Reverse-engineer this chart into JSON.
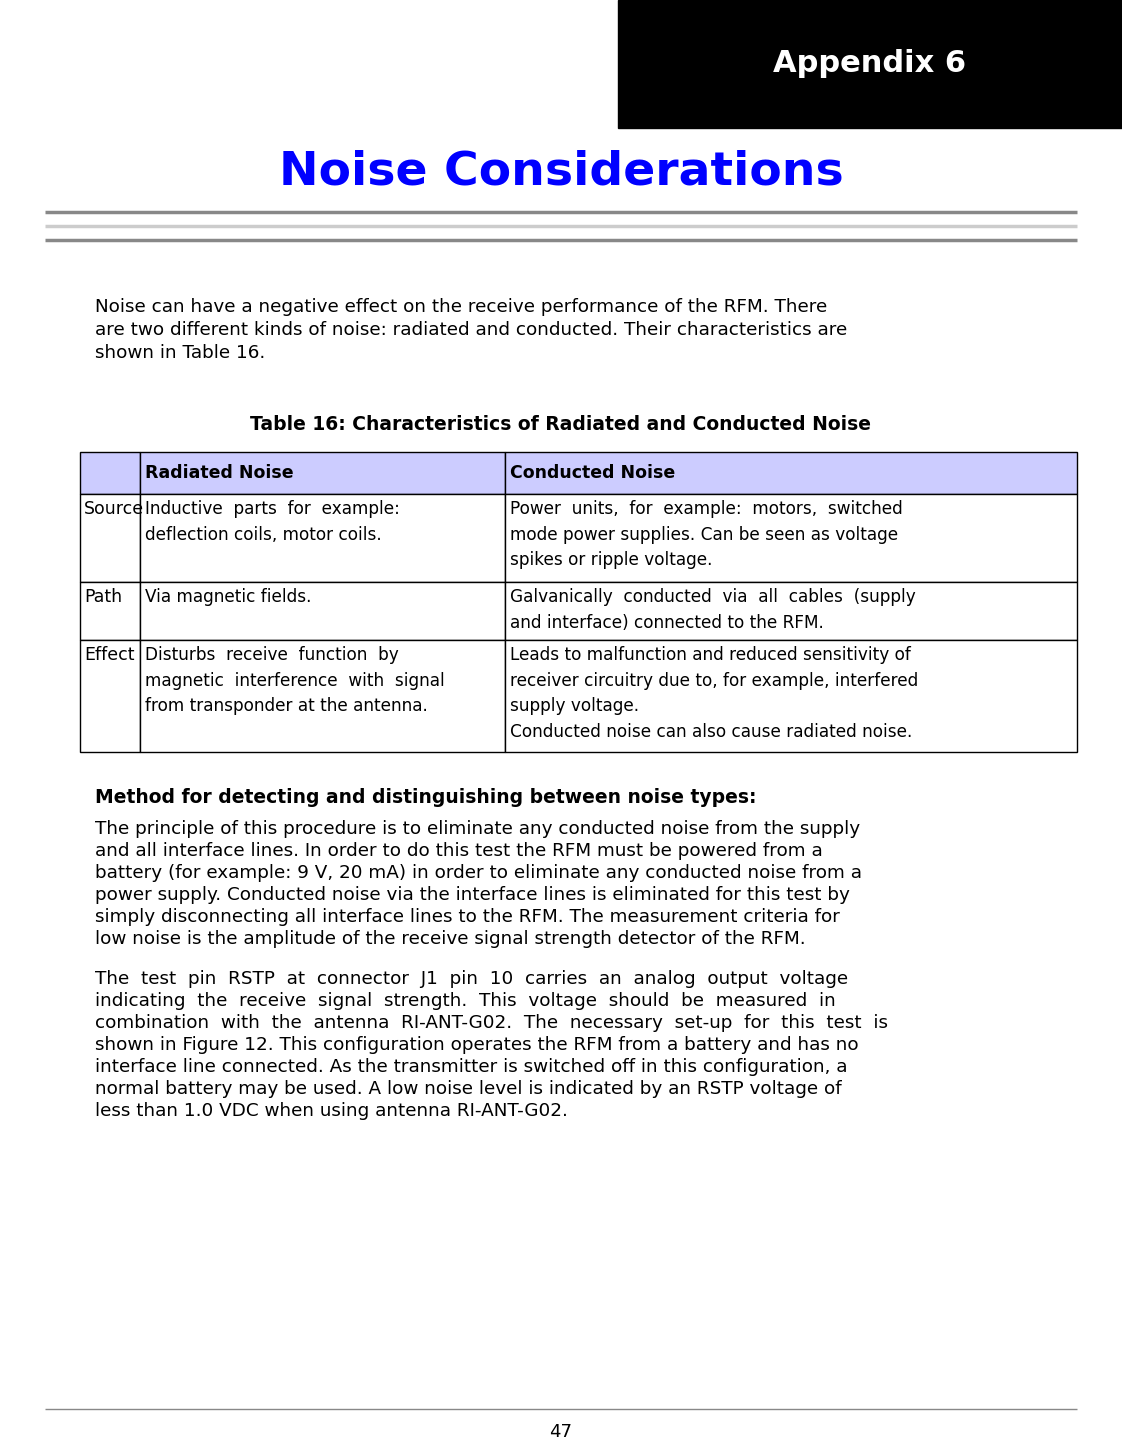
{
  "page_width": 11.22,
  "page_height": 14.41,
  "dpi": 100,
  "bg_color": "#ffffff",
  "header_bg": "#000000",
  "header_text": "Appendix 6",
  "header_text_color": "#ffffff",
  "title_text": "Noise Considerations",
  "title_color": "#0000ff",
  "table_header_bg": "#ccccff",
  "table_border_color": "#000000",
  "table_caption": "Table 16: Characteristics of Radiated and Conducted Noise",
  "table_col_headers": [
    "Radiated Noise",
    "Conducted Noise"
  ],
  "table_rows": [
    {
      "label": "Source",
      "col1": "Inductive  parts  for  example:\ndeflection coils, motor coils.",
      "col2": "Power  units,  for  example:  motors,  switched\nmode power supplies. Can be seen as voltage\nspikes or ripple voltage."
    },
    {
      "label": "Path",
      "col1": "Via magnetic fields.",
      "col2": "Galvanically  conducted  via  all  cables  (supply\nand interface) connected to the RFM."
    },
    {
      "label": "Effect",
      "col1": "Disturbs  receive  function  by\nmagnetic  interference  with  signal\nfrom transponder at the antenna.",
      "col2": "Leads to malfunction and reduced sensitivity of\nreceiver circuitry due to, for example, interfered\nsupply voltage.\nConducted noise can also cause radiated noise."
    }
  ],
  "intro_lines": [
    "Noise can have a negative effect on the receive performance of the RFM. There",
    "are two different kinds of noise: radiated and conducted. Their characteristics are",
    "shown in Table 16."
  ],
  "method_heading": "Method for detecting and distinguishing between noise types:",
  "para1_lines": [
    "The principle of this procedure is to eliminate any conducted noise from the supply",
    "and all interface lines. In order to do this test the RFM must be powered from a",
    "battery (for example: 9 V, 20 mA) in order to eliminate any conducted noise from a",
    "power supply. Conducted noise via the interface lines is eliminated for this test by",
    "simply disconnecting all interface lines to the RFM. The measurement criteria for",
    "low noise is the amplitude of the receive signal strength detector of the RFM."
  ],
  "para2_lines": [
    "The  test  pin  RSTP  at  connector  J1  pin  10  carries  an  analog  output  voltage",
    "indicating  the  receive  signal  strength.  This  voltage  should  be  measured  in",
    "combination  with  the  antenna  RI-ANT-G02.  The  necessary  set-up  for  this  test  is",
    "shown in Figure 12. This configuration operates the RFM from a battery and has no",
    "interface line connected. As the transmitter is switched off in this configuration, a",
    "normal battery may be used. A low noise level is indicated by an RSTP voltage of",
    "less than 1.0 VDC when using antenna RI-ANT-G02."
  ],
  "page_number": "47",
  "separator_colors": [
    "#888888",
    "#cccccc",
    "#888888"
  ],
  "footer_line_color": "#888888"
}
